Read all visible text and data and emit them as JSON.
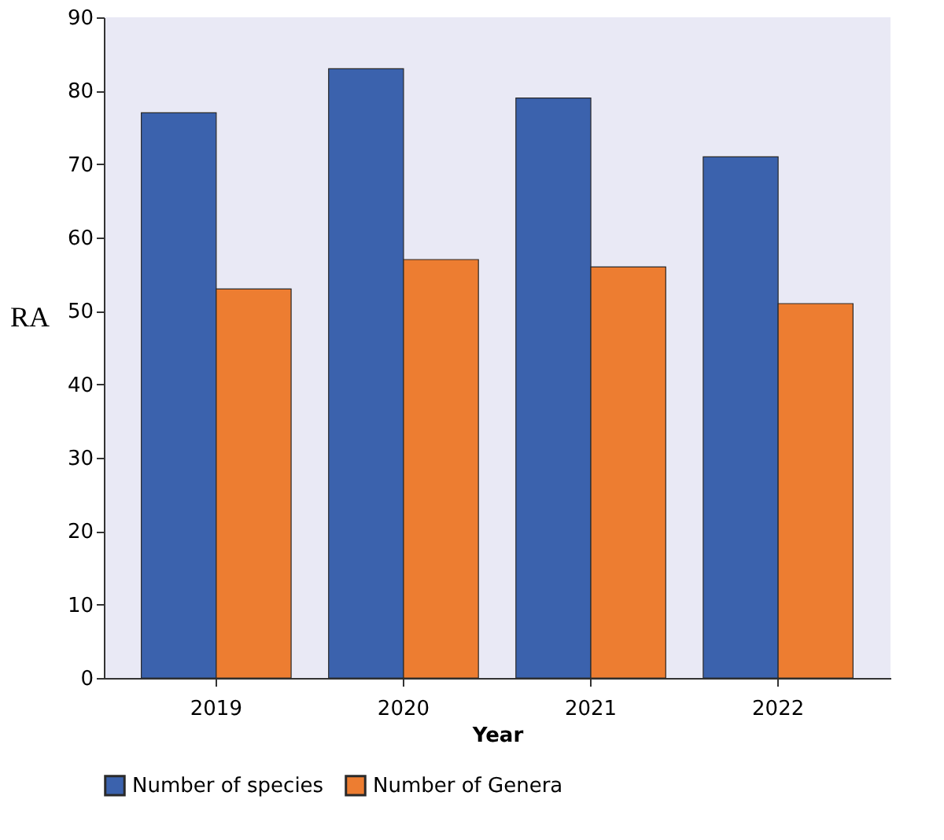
{
  "chart_data": {
    "type": "bar",
    "categories": [
      "2019",
      "2020",
      "2021",
      "2022"
    ],
    "series": [
      {
        "name": "Number of species",
        "color": "#3b62ad",
        "values": [
          77,
          83,
          79,
          71
        ]
      },
      {
        "name": "Number of Genera",
        "color": "#ed7d31",
        "values": [
          53,
          57,
          56,
          51
        ]
      }
    ],
    "xlabel": "Year",
    "ylabel": "RA",
    "ylim": [
      0,
      90
    ],
    "yticks": [
      0,
      10,
      20,
      30,
      40,
      50,
      60,
      70,
      80,
      90
    ],
    "grid": false,
    "legend": "bottom"
  }
}
